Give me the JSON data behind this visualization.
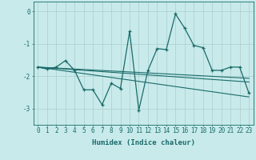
{
  "xlabel": "Humidex (Indice chaleur)",
  "bg_color": "#c8eaea",
  "grid_color": "#aacece",
  "line_color": "#1a6b6b",
  "x_values": [
    0,
    1,
    2,
    3,
    4,
    5,
    6,
    7,
    8,
    9,
    10,
    11,
    12,
    13,
    14,
    15,
    16,
    17,
    18,
    19,
    20,
    21,
    22,
    23
  ],
  "y_main": [
    -1.72,
    -1.78,
    -1.72,
    -1.52,
    -1.82,
    -2.42,
    -2.42,
    -2.88,
    -2.22,
    -2.38,
    -0.62,
    -3.05,
    -1.82,
    -1.15,
    -1.18,
    -0.08,
    -0.52,
    -1.05,
    -1.12,
    -1.82,
    -1.82,
    -1.72,
    -1.72,
    -2.52
  ],
  "y_trend1": [
    -1.72,
    -1.74,
    -1.76,
    -1.78,
    -1.8,
    -1.82,
    -1.84,
    -1.86,
    -1.88,
    -1.9,
    -1.92,
    -1.94,
    -1.96,
    -1.98,
    -2.0,
    -2.02,
    -2.04,
    -2.06,
    -2.08,
    -2.1,
    -2.12,
    -2.14,
    -2.16,
    -2.18
  ],
  "y_trend2": [
    -1.72,
    -1.76,
    -1.8,
    -1.84,
    -1.88,
    -1.92,
    -1.96,
    -2.0,
    -2.04,
    -2.08,
    -2.12,
    -2.16,
    -2.2,
    -2.24,
    -2.28,
    -2.32,
    -2.36,
    -2.4,
    -2.44,
    -2.48,
    -2.52,
    -2.56,
    -2.6,
    -2.64
  ],
  "y_trend3": [
    -1.72,
    -1.735,
    -1.75,
    -1.765,
    -1.78,
    -1.795,
    -1.81,
    -1.825,
    -1.84,
    -1.855,
    -1.87,
    -1.885,
    -1.9,
    -1.915,
    -1.93,
    -1.945,
    -1.96,
    -1.975,
    -1.99,
    -2.005,
    -2.02,
    -2.035,
    -2.05,
    -2.065
  ],
  "xlim": [
    -0.5,
    23.5
  ],
  "ylim": [
    -3.5,
    0.3
  ],
  "yticks": [
    0,
    -1,
    -2,
    -3
  ],
  "xticks": [
    0,
    1,
    2,
    3,
    4,
    5,
    6,
    7,
    8,
    9,
    10,
    11,
    12,
    13,
    14,
    15,
    16,
    17,
    18,
    19,
    20,
    21,
    22,
    23
  ],
  "tick_fontsize": 5.5,
  "xlabel_fontsize": 6.5
}
